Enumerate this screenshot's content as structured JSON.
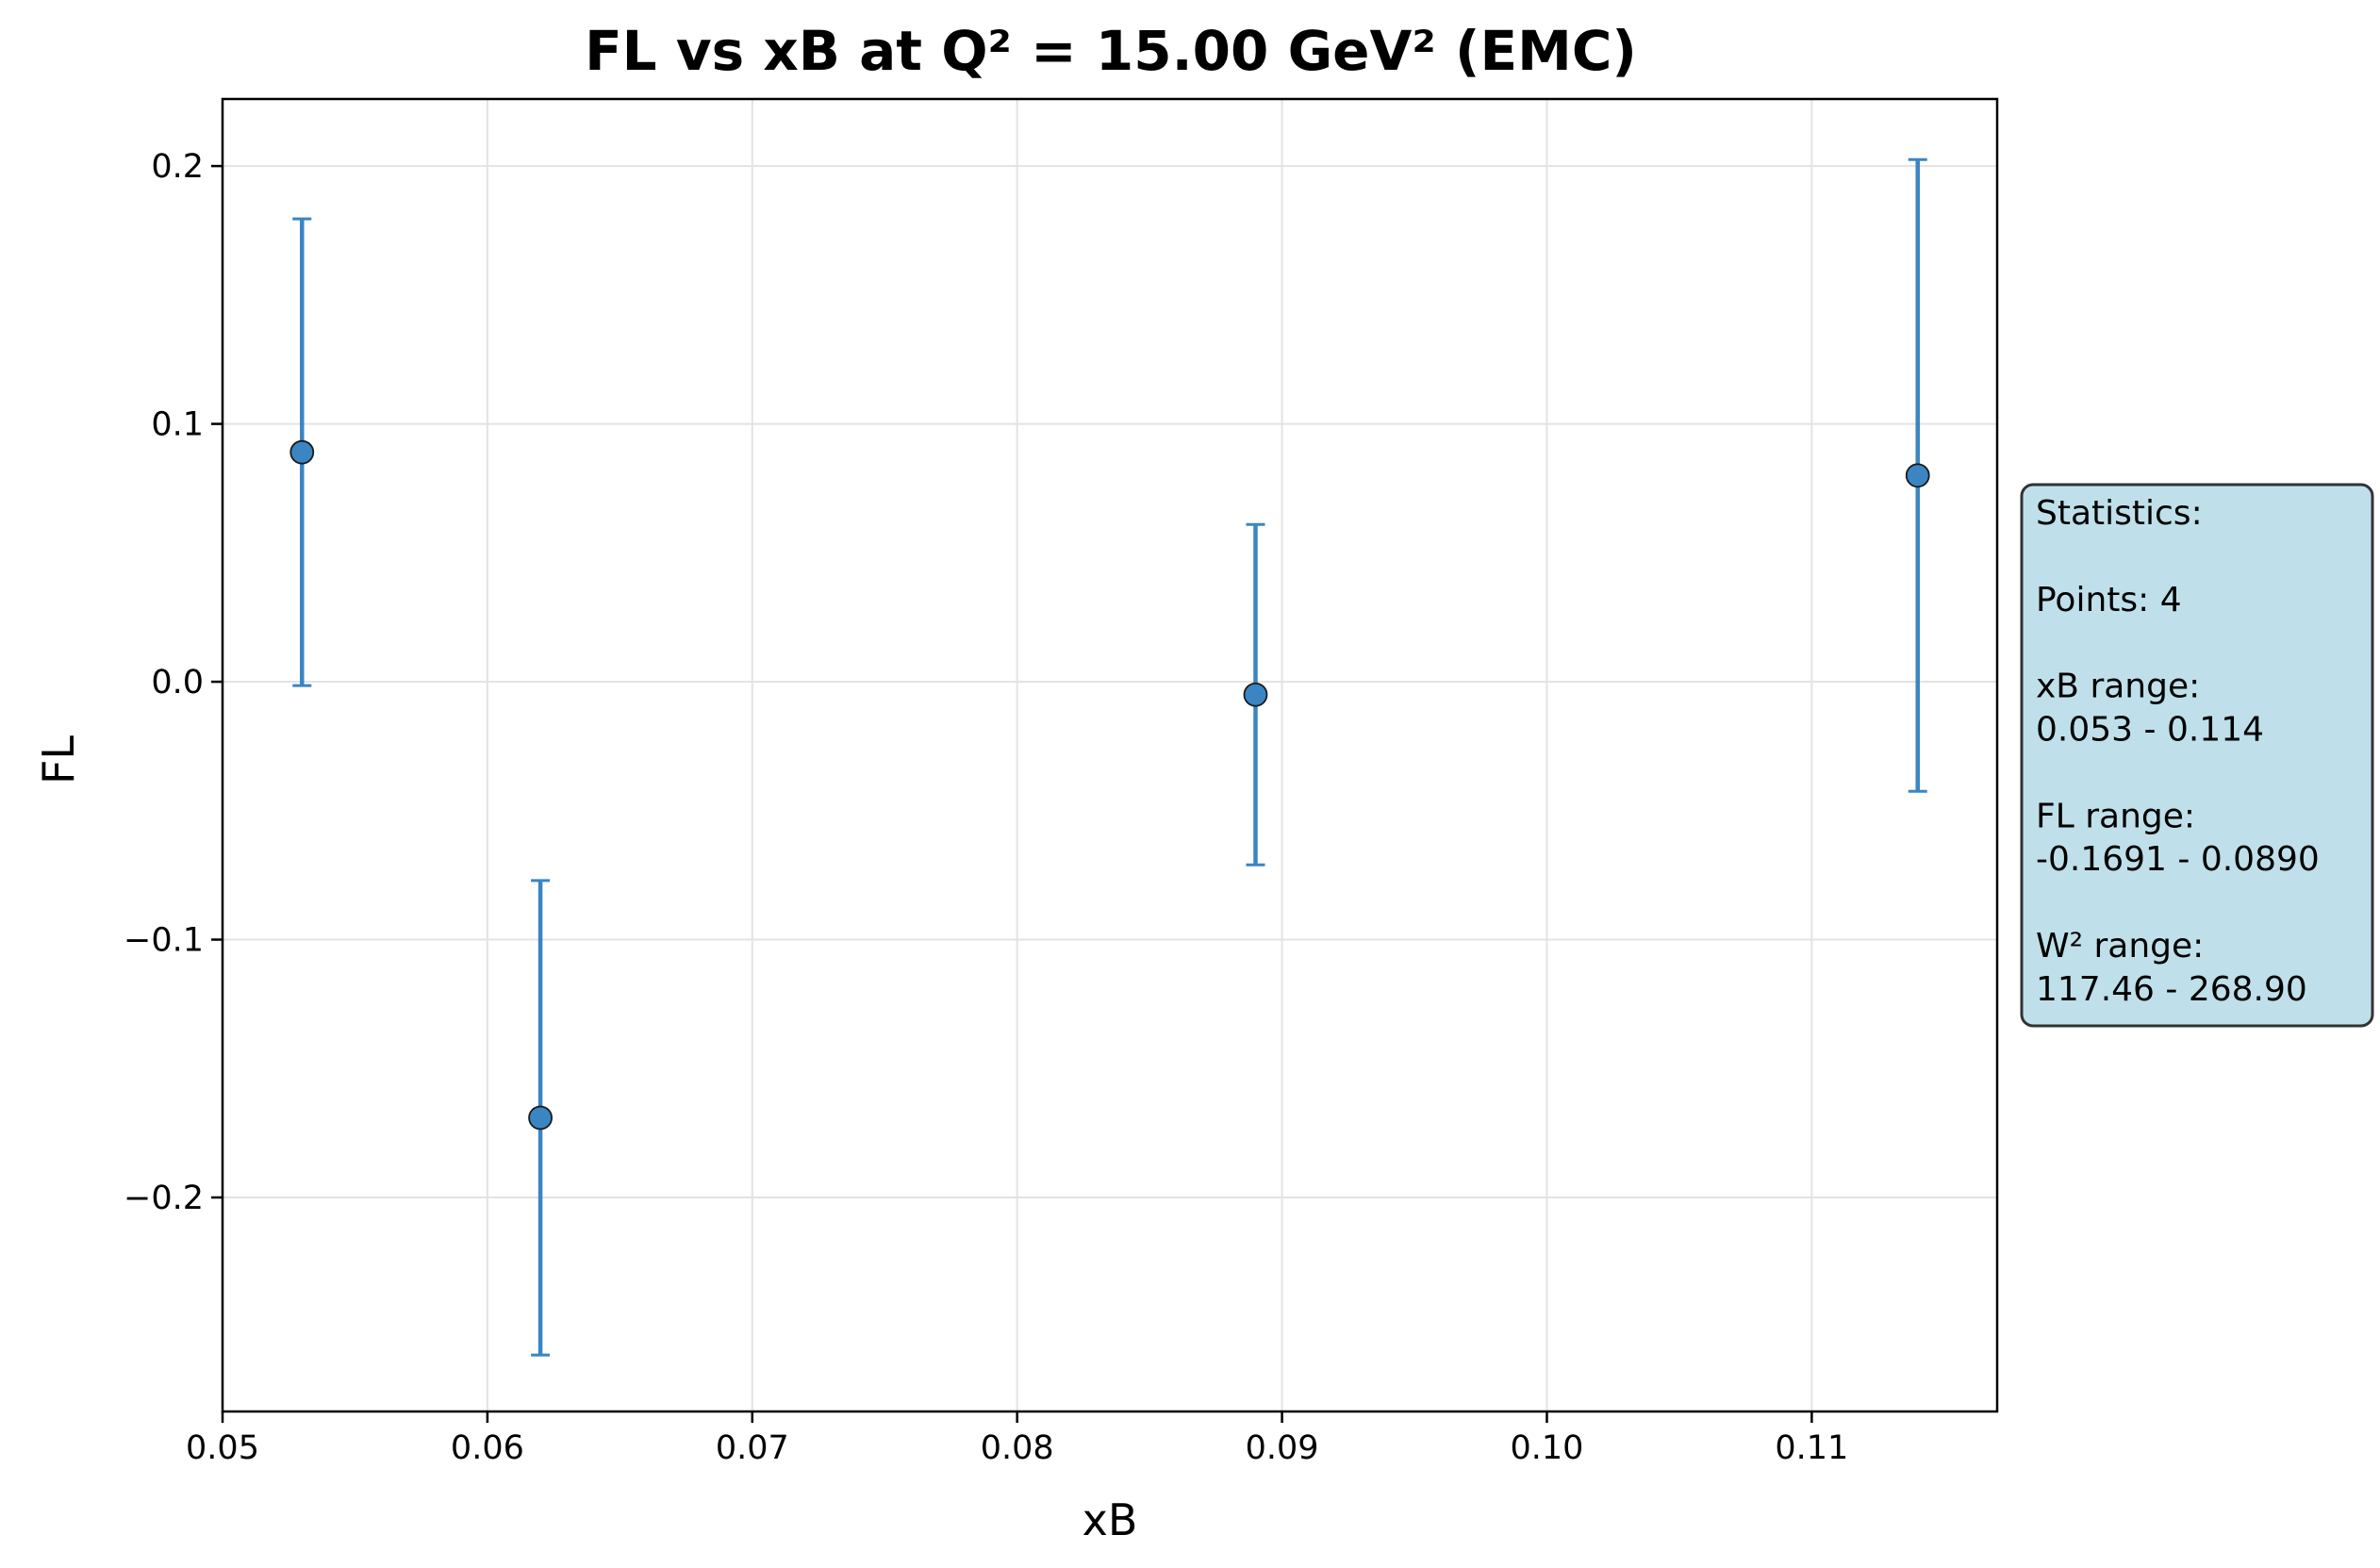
{
  "chart_data": {
    "type": "scatter",
    "title": "FL vs xB at Q² = 15.00 GeV² (EMC)",
    "xlabel": "xB",
    "ylabel": "FL",
    "xlim": [
      0.05,
      0.117
    ],
    "ylim": [
      -0.283,
      0.226
    ],
    "x_ticks": [
      0.05,
      0.06,
      0.07,
      0.08,
      0.09,
      0.1,
      0.11
    ],
    "x_tick_labels": [
      "0.05",
      "0.06",
      "0.07",
      "0.08",
      "0.09",
      "0.10",
      "0.11"
    ],
    "y_ticks": [
      -0.2,
      -0.1,
      0.0,
      0.1,
      0.2
    ],
    "y_tick_labels": [
      "−0.2",
      "−0.1",
      "0.0",
      "0.1",
      "0.2"
    ],
    "grid": true,
    "points": [
      {
        "x": 0.053,
        "y": 0.089,
        "err": 0.0905
      },
      {
        "x": 0.062,
        "y": -0.1691,
        "err": 0.092
      },
      {
        "x": 0.089,
        "y": -0.005,
        "err": 0.066
      },
      {
        "x": 0.114,
        "y": 0.08,
        "err": 0.1225
      }
    ],
    "colors": {
      "marker": "#3a85c2",
      "error_bar": "#3a85c2",
      "marker_edge": "#1a1a1a",
      "grid": "#e3e3e3",
      "stats_box_fill": "#bfe0ea",
      "stats_box_edge": "#333333"
    },
    "stats_box": {
      "placement": "right of plot",
      "lines": [
        "Statistics:",
        "",
        "Points: 4",
        "",
        "xB range:",
        "0.053 - 0.114",
        "",
        "FL range:",
        "-0.1691 - 0.0890",
        "",
        "W² range:",
        "117.46 - 268.90"
      ]
    }
  }
}
